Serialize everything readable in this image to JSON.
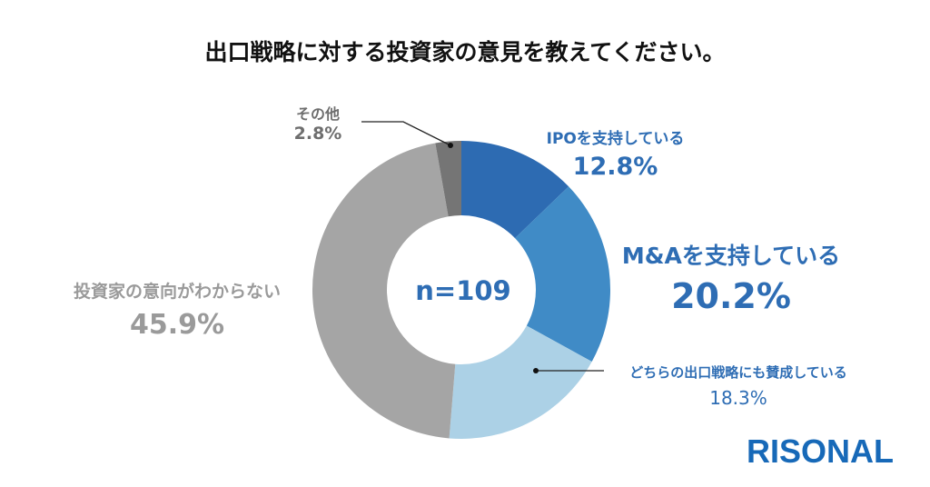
{
  "title": "出口戦略に対する投資家の意見を教えてください。",
  "center_label": "n=109",
  "logo_text": "RISONAL",
  "chart_data": {
    "type": "pie",
    "donut": true,
    "title": "出口戦略に対する投資家の意見を教えてください。",
    "n": 109,
    "slices": [
      {
        "label": "IPOを支持している",
        "value": 12.8,
        "value_label": "12.8%",
        "color": "#2d6bb2"
      },
      {
        "label": "M&Aを支持している",
        "value": 20.2,
        "value_label": "20.2%",
        "color": "#408bc6"
      },
      {
        "label": "どちらの出口戦略にも賛成している",
        "value": 18.3,
        "value_label": "18.3%",
        "color": "#acd1e6"
      },
      {
        "label": "投資家の意向がわからない",
        "value": 45.9,
        "value_label": "45.9%",
        "color": "#a5a5a5"
      },
      {
        "label": "その他",
        "value": 2.8,
        "value_label": "2.8%",
        "color": "#757575"
      }
    ]
  }
}
